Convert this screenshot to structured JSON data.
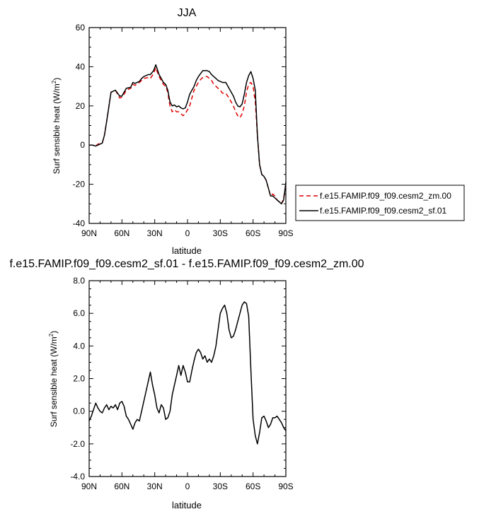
{
  "chart_data": [
    {
      "type": "line",
      "title": "JJA",
      "xlabel": "latitude",
      "ylabel": "Surf sensible heat (W/m",
      "ylabel_sup": "2",
      "ylabel_close": ")",
      "xlim": [
        90,
        -90
      ],
      "ylim": [
        -40,
        60
      ],
      "xticks": [
        {
          "v": 90,
          "label": "90N"
        },
        {
          "v": 60,
          "label": "60N"
        },
        {
          "v": 30,
          "label": "30N"
        },
        {
          "v": 0,
          "label": "0"
        },
        {
          "v": -30,
          "label": "30S"
        },
        {
          "v": -60,
          "label": "60S"
        },
        {
          "v": -90,
          "label": "90S"
        }
      ],
      "yticks": [
        {
          "v": 60,
          "label": "60"
        },
        {
          "v": 40,
          "label": "40"
        },
        {
          "v": 20,
          "label": "20"
        },
        {
          "v": 0,
          "label": "0"
        },
        {
          "v": -20,
          "label": "-20"
        },
        {
          "v": -40,
          "label": "-40"
        }
      ],
      "legend_position": "right",
      "series": [
        {
          "name": "f.e15.FAMIP.f09_f09.cesm2_zm.00",
          "color": "#e00000",
          "dash": "6,4",
          "x": [
            90,
            87,
            84,
            82,
            78,
            76,
            74,
            70,
            66,
            62,
            60,
            58,
            56,
            52,
            50,
            48,
            44,
            42,
            40,
            36,
            34,
            31,
            29,
            26,
            24,
            22,
            20,
            18,
            17,
            16,
            14,
            12,
            10,
            8,
            6,
            4,
            2,
            0,
            -2,
            -4,
            -6,
            -8,
            -10,
            -12,
            -14,
            -16,
            -18,
            -20,
            -22,
            -24,
            -26,
            -28,
            -30,
            -32,
            -35,
            -38,
            -40,
            -42,
            -44,
            -46,
            -48,
            -50,
            -52,
            -54,
            -56,
            -58,
            -60,
            -62,
            -64,
            -66,
            -68,
            -70,
            -72,
            -74,
            -76,
            -78,
            -80,
            -82,
            -84,
            -86,
            -88,
            -90
          ],
          "y": [
            0,
            0,
            -0.5,
            0.5,
            1,
            5,
            12,
            27,
            28,
            24,
            24.5,
            26,
            28,
            29,
            31,
            30.5,
            32,
            33,
            34,
            34.5,
            34,
            36.5,
            39.5,
            35,
            33,
            31,
            30,
            27,
            23,
            20,
            17,
            18,
            17,
            17,
            16,
            15,
            16,
            18,
            20,
            24,
            28,
            30,
            32,
            33.5,
            34.5,
            35,
            35,
            34,
            33,
            31,
            30,
            29,
            28,
            26.5,
            26.5,
            24,
            22,
            20,
            17,
            15,
            14,
            16,
            20,
            27,
            31,
            32,
            30,
            22,
            5,
            -10,
            -15,
            -16,
            -18,
            -22,
            -26,
            -25,
            -26,
            -28,
            -29,
            -30,
            -27,
            -20
          ]
        },
        {
          "name": "f.e15.FAMIP.f09_f09.cesm2_sf.01",
          "color": "#000000",
          "dash": "",
          "x": [
            90,
            87,
            84,
            82,
            78,
            76,
            74,
            70,
            66,
            62,
            60,
            58,
            56,
            52,
            50,
            48,
            44,
            42,
            40,
            36,
            34,
            31,
            29,
            26,
            24,
            22,
            20,
            18,
            17,
            16,
            14,
            12,
            10,
            8,
            6,
            4,
            2,
            0,
            -2,
            -4,
            -6,
            -8,
            -10,
            -12,
            -14,
            -16,
            -18,
            -20,
            -22,
            -24,
            -26,
            -28,
            -30,
            -32,
            -35,
            -38,
            -40,
            -42,
            -44,
            -46,
            -48,
            -50,
            -52,
            -54,
            -56,
            -58,
            -60,
            -62,
            -64,
            -66,
            -68,
            -70,
            -72,
            -74,
            -76,
            -78,
            -80,
            -82,
            -84,
            -86,
            -88,
            -90
          ],
          "y": [
            0,
            0,
            -0.5,
            0,
            1,
            5,
            12,
            27,
            28,
            25,
            25,
            27,
            29,
            29.5,
            32,
            31.5,
            32.5,
            34,
            35,
            36,
            36,
            38,
            41,
            36,
            34,
            32,
            31,
            28,
            25,
            22,
            20,
            20.5,
            19.5,
            20,
            19,
            18.5,
            19,
            22,
            26,
            28,
            30,
            33,
            35,
            36.5,
            38,
            38,
            38,
            37.5,
            36,
            35,
            34,
            33,
            32.5,
            32,
            32,
            29,
            27,
            25,
            22,
            20,
            19.5,
            21,
            26,
            32,
            35.5,
            37.5,
            34,
            28,
            5,
            -10,
            -15,
            -16,
            -18,
            -22,
            -26,
            -26,
            -27,
            -28,
            -29,
            -30,
            -28,
            -19
          ]
        }
      ]
    },
    {
      "type": "line",
      "title": "f.e15.FAMIP.f09_f09.cesm2_sf.01 - f.e15.FAMIP.f09_f09.cesm2_zm.00",
      "xlabel": "latitude",
      "ylabel": "Surf sensible heat (W/m",
      "ylabel_sup": "2",
      "ylabel_close": ")",
      "xlim": [
        90,
        -90
      ],
      "ylim": [
        -4,
        8
      ],
      "xticks": [
        {
          "v": 90,
          "label": "90N"
        },
        {
          "v": 60,
          "label": "60N"
        },
        {
          "v": 30,
          "label": "30N"
        },
        {
          "v": 0,
          "label": "0"
        },
        {
          "v": -30,
          "label": "30S"
        },
        {
          "v": -60,
          "label": "60S"
        },
        {
          "v": -90,
          "label": "90S"
        }
      ],
      "yticks": [
        {
          "v": 8,
          "label": "8.0"
        },
        {
          "v": 6,
          "label": "6.0"
        },
        {
          "v": 4,
          "label": "4.0"
        },
        {
          "v": 2,
          "label": "2.0"
        },
        {
          "v": 0,
          "label": "0.0"
        },
        {
          "v": -2,
          "label": "-2.0"
        },
        {
          "v": -4,
          "label": "-4.0"
        }
      ],
      "series": [
        {
          "name": "",
          "color": "#000000",
          "dash": "",
          "x": [
            90,
            88,
            86,
            84,
            82,
            80,
            78,
            76,
            74,
            72,
            70,
            68,
            66,
            64,
            62,
            60,
            58,
            56,
            54,
            52,
            50,
            48,
            46,
            44,
            42,
            40,
            38,
            36,
            34,
            32,
            30,
            28,
            26,
            24,
            22,
            20,
            18,
            16,
            14,
            12,
            10,
            8,
            6,
            4,
            2,
            0,
            -2,
            -4,
            -6,
            -8,
            -10,
            -12,
            -14,
            -16,
            -18,
            -20,
            -22,
            -24,
            -26,
            -28,
            -30,
            -32,
            -34,
            -36,
            -38,
            -40,
            -42,
            -44,
            -46,
            -48,
            -50,
            -52,
            -54,
            -56,
            -58,
            -60,
            -62,
            -64,
            -66,
            -68,
            -70,
            -72,
            -74,
            -76,
            -78,
            -80,
            -82,
            -84,
            -86,
            -88,
            -90
          ],
          "y": [
            -0.6,
            -0.3,
            0.1,
            0.5,
            0.2,
            0.0,
            -0.1,
            0.2,
            0.4,
            0.1,
            0.3,
            0.2,
            0.4,
            0.1,
            0.5,
            0.6,
            0.3,
            -0.3,
            -0.5,
            -0.8,
            -1.1,
            -0.7,
            -0.5,
            -0.6,
            0.0,
            0.6,
            1.2,
            1.8,
            2.4,
            1.6,
            1.0,
            0.2,
            -0.1,
            0.4,
            0.2,
            -0.5,
            -0.4,
            0.0,
            1.0,
            1.6,
            2.2,
            2.8,
            2.2,
            2.8,
            2.4,
            1.8,
            1.8,
            2.5,
            3.1,
            3.6,
            3.8,
            3.6,
            3.2,
            3.4,
            3.0,
            3.2,
            3.0,
            3.4,
            4.0,
            5.0,
            6.0,
            6.3,
            6.5,
            6.0,
            5.0,
            4.5,
            4.6,
            5.0,
            5.5,
            6.0,
            6.5,
            6.7,
            6.6,
            5.8,
            2.5,
            -0.5,
            -1.5,
            -2.0,
            -1.3,
            -0.4,
            -0.3,
            -0.6,
            -1.0,
            -0.8,
            -0.4,
            -0.4,
            -0.3,
            -0.5,
            -0.7,
            -1.0,
            -1.2
          ]
        }
      ]
    }
  ]
}
